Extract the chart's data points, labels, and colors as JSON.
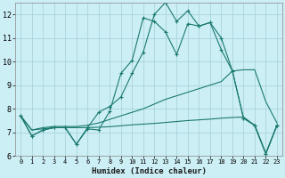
{
  "xlabel": "Humidex (Indice chaleur)",
  "bg_color": "#cceef5",
  "grid_color": "#aad4dc",
  "line_color": "#1a7a6e",
  "xlim": [
    -0.5,
    23.5
  ],
  "ylim": [
    6,
    12.5
  ],
  "yticks": [
    6,
    7,
    8,
    9,
    10,
    11,
    12
  ],
  "xticks": [
    0,
    1,
    2,
    3,
    4,
    5,
    6,
    7,
    8,
    9,
    10,
    11,
    12,
    13,
    14,
    15,
    16,
    17,
    18,
    19,
    20,
    21,
    22,
    23
  ],
  "s1": [
    7.7,
    6.85,
    7.1,
    7.2,
    7.2,
    6.5,
    7.15,
    7.1,
    7.9,
    9.5,
    10.05,
    11.85,
    11.7,
    11.25,
    10.3,
    11.6,
    11.5,
    11.65,
    11.0,
    9.6,
    7.6,
    7.3,
    6.1,
    7.3
  ],
  "s2": [
    7.7,
    6.85,
    7.1,
    7.2,
    7.2,
    6.5,
    7.2,
    7.85,
    8.1,
    8.5,
    9.5,
    10.4,
    12.0,
    12.5,
    11.7,
    12.15,
    11.5,
    11.65,
    10.5,
    9.6,
    7.6,
    7.3,
    6.1,
    7.3
  ],
  "s3": [
    7.7,
    7.1,
    7.2,
    7.25,
    7.25,
    7.25,
    7.3,
    7.4,
    7.55,
    7.7,
    7.85,
    8.0,
    8.2,
    8.4,
    8.55,
    8.7,
    8.85,
    9.0,
    9.15,
    9.6,
    9.65,
    9.65,
    8.3,
    7.4
  ],
  "s4": [
    7.7,
    7.1,
    7.15,
    7.2,
    7.2,
    7.2,
    7.2,
    7.22,
    7.24,
    7.28,
    7.32,
    7.35,
    7.38,
    7.42,
    7.46,
    7.5,
    7.53,
    7.56,
    7.6,
    7.63,
    7.65,
    7.3,
    6.1,
    7.3
  ]
}
